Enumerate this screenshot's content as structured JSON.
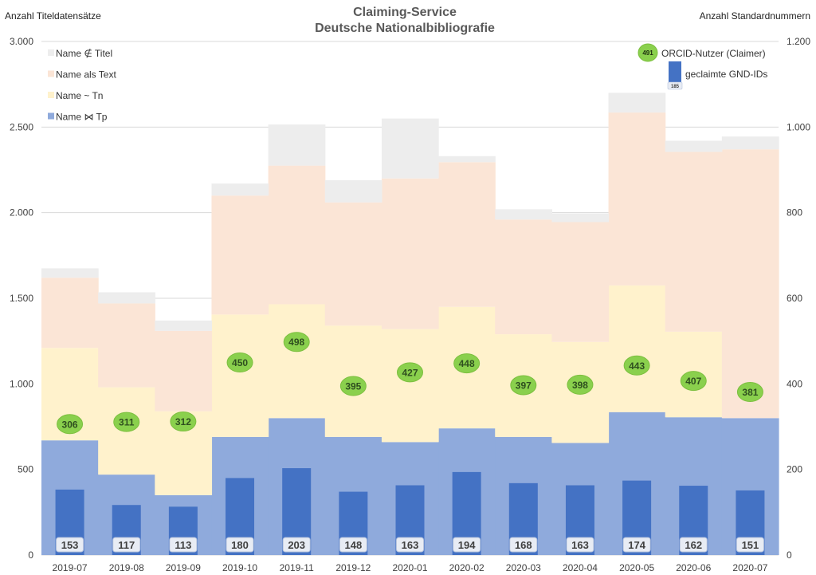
{
  "chart_data": {
    "type": "bar",
    "title": "Claiming-Service",
    "subtitle": "Deutsche Nationalbibliografie",
    "left_axis_title": "Anzahl Titeldatensätze",
    "right_axis_title": "Anzahl Standardnummern",
    "categories": [
      "2019-07",
      "2019-08",
      "2019-09",
      "2019-10",
      "2019-11",
      "2019-12",
      "2020-01",
      "2020-02",
      "2020-03",
      "2020-04",
      "2020-05",
      "2020-06",
      "2020-07"
    ],
    "left_axis": {
      "min": 0,
      "max": 3000,
      "ticks": [
        0,
        500,
        1000,
        1500,
        2000,
        2500,
        3000
      ],
      "tick_labels": [
        "0",
        "500",
        "1.000",
        "1.500",
        "2.000",
        "2.500",
        "3.000"
      ]
    },
    "right_axis": {
      "min": 0,
      "max": 1200,
      "ticks": [
        0,
        200,
        400,
        600,
        800,
        1000,
        1200
      ],
      "tick_labels": [
        "0",
        "200",
        "400",
        "600",
        "800",
        "1.000",
        "1.200"
      ]
    },
    "stacked_area_series": [
      {
        "name": "Name ⋈ Tp",
        "color": "#8faadc",
        "values": [
          670,
          470,
          350,
          690,
          800,
          690,
          660,
          740,
          690,
          655,
          835,
          805,
          800
        ]
      },
      {
        "name": "Name ~ Tn",
        "color": "#fff2cc",
        "values": [
          540,
          510,
          490,
          715,
          665,
          650,
          660,
          710,
          600,
          590,
          740,
          500,
          0
        ]
      },
      {
        "name": "Name als Text",
        "color": "#fbe5d6",
        "values": [
          410,
          490,
          470,
          695,
          810,
          720,
          880,
          845,
          670,
          700,
          1010,
          1050,
          1570
        ]
      },
      {
        "name": "Name ∉ Titel",
        "color": "#ededed",
        "values": [
          55,
          65,
          60,
          70,
          240,
          130,
          350,
          35,
          60,
          50,
          115,
          65,
          75
        ]
      }
    ],
    "bar_series": {
      "name": "geclaimte GND-IDs",
      "axis": "right",
      "color": "#4472c4",
      "values": [
        153,
        117,
        113,
        180,
        203,
        148,
        163,
        194,
        168,
        163,
        174,
        162,
        151
      ]
    },
    "bubble_series": {
      "name": "ORCID-Nutzer (Claimer)",
      "axis": "right",
      "color": "#8ad04d",
      "values": [
        306,
        311,
        312,
        450,
        498,
        395,
        427,
        448,
        397,
        398,
        443,
        407,
        381
      ]
    },
    "legend": {
      "area_items": [
        "Name ∉ Titel",
        "Name als Text",
        "Name ~ Tn",
        "Name ⋈ Tp"
      ],
      "bubble_label": "ORCID-Nutzer (Claimer)",
      "bubble_sample_value": "491",
      "bar_label": "geclaimte GND-IDs",
      "bar_sample_value": "185"
    }
  }
}
